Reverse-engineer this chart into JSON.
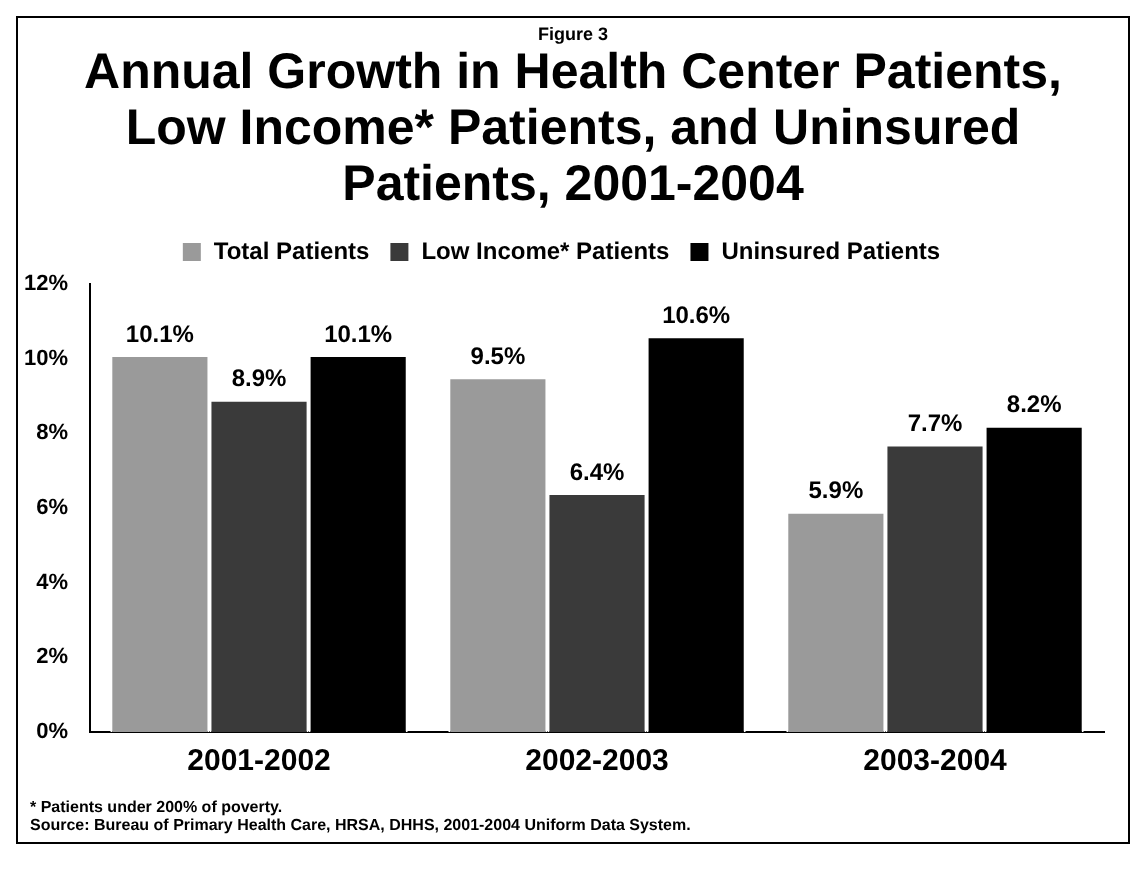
{
  "chart_data": {
    "type": "bar",
    "subtitle": "Figure 3",
    "title": "Annual Growth in Health Center Patients, Low Income* Patients, and Uninsured Patients, 2001-2004",
    "categories": [
      "2001-2002",
      "2002-2003",
      "2003-2004"
    ],
    "series": [
      {
        "name": "Total Patients",
        "color": "#9a9a9a",
        "values": [
          10.1,
          9.5,
          5.9
        ]
      },
      {
        "name": "Low Income* Patients",
        "color": "#3a3a3a",
        "values": [
          8.9,
          6.4,
          7.7
        ]
      },
      {
        "name": "Uninsured Patients",
        "color": "#000000",
        "values": [
          10.1,
          10.6,
          8.2
        ]
      }
    ],
    "ylim": [
      0,
      12
    ],
    "yticks": [
      {
        "value": 0,
        "label": "0%"
      },
      {
        "value": 2,
        "label": "2%"
      },
      {
        "value": 4,
        "label": "4%"
      },
      {
        "value": 6,
        "label": "6%"
      },
      {
        "value": 8,
        "label": "8%"
      },
      {
        "value": 10,
        "label": "10%"
      },
      {
        "value": 12,
        "label": "12%"
      }
    ],
    "value_labels": [
      [
        "10.1%",
        "9.5%",
        "5.9%"
      ],
      [
        "8.9%",
        "6.4%",
        "7.7%"
      ],
      [
        "10.1%",
        "10.6%",
        "8.2%"
      ]
    ],
    "legend": "top",
    "grid": false,
    "annotations": [
      "* Patients under 200% of poverty.",
      "Source:  Bureau of Primary Health Care, HRSA, DHHS, 2001-2004 Uniform Data System."
    ]
  }
}
